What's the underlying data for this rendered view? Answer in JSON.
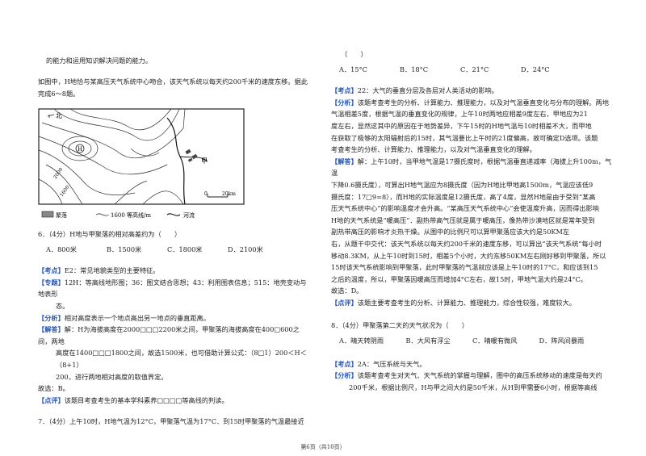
{
  "left": {
    "l1": "的能力和运用知识解决问题的能力。",
    "intro": "如图中，H地恰与某高压天气系统中心吻合，该天气系统以每天约200千米的速度东移。据此完成6～8题。",
    "map": {
      "north": "北",
      "h": "H",
      "jia": "甲",
      "c2000": "2000",
      "c1600": "1600",
      "scale0": "0",
      "scale20": "20km",
      "leg_village": "聚落",
      "leg_contour": "1600",
      "leg_contour_text": "等高线/m",
      "leg_river": "河流"
    },
    "q6": "6．（4分）H地与甲聚落的相对高差约为（　　）",
    "q6_opts": [
      "A．800米",
      "B．1500米",
      "C．1800米",
      "D．2100米"
    ],
    "kd_tag": "【考点】",
    "kd": "E2：常见地貌类型的主要特征。",
    "zt_tag": "【专题】",
    "zt1": "12H：等高线地形图；36：图文结合思想；43：利用图表信息；515：地壳变动与地表形",
    "zt2": "态。",
    "fx_tag": "【分析】",
    "fx": "相对高度表示一个地点高出另一地点的垂直距离。",
    "jd_tag": "【解答】",
    "jd1": "解：H为海拔高度在2000□□□2200米之间，甲聚落的海拔高度在400□600之间，两地",
    "jd2": "高度在1400□□□1800之间，故选1500米，也可借助计算公式：（8□1）200＜H＜（8+1）",
    "jd3": "200，进行两地相对高度的取值界定。",
    "ans": "故选：B。",
    "dp_tag": "【点评】",
    "dp": "该题目考查考生的基本学科素养□□□□等高线的判读。",
    "q7": "7．（4分）上午10时，H地气温为12°C，甲聚落气温为17°C．到15时甲聚落的气温最接近"
  },
  "right": {
    "paren": "（　　）",
    "q7_opts": [
      "A．15°C",
      "B．18°C",
      "C．21°C",
      "D．24°C"
    ],
    "kd_tag": "【考点】",
    "kd": "22：大气的垂直分层及各层对人类活动的影响。",
    "fx_tag": "【分析】",
    "fx1": "该题考查考生的分析、计算能力、推理能力，以及对气温垂直变化与分布的理解。两地",
    "fx2": "气温相差5度，根据气温的垂直变化的规律，上午10时两地应相差9度左右，甲地应为21",
    "fx3": "度左右，显然这其中的原因在于地势差异，下午15时的H地气温与10时相差不大，而甲地",
    "fx4": "在获取了极够的太阳辐射后的15时，其气温要比上午时的21度偏高，故可确定D选项。该题",
    "fx5": "考查考生的分析、计算能力、推理能力，以及对气温垂直变化的理解。",
    "jd_tag": "【解答】",
    "jd1": "解：上午10时，当甲地气温是17摄氏度时，根据气温垂直递减率（海拔上升100m，气温",
    "jd2": "下降0.6摄氏度），可算出H地气温应为8摄氏度（因为H地比甲地高1500m，气温应该低9",
    "jd3": "摄氏度：17□9=8），而H地的实际温度是12摄氏度，高了4度，显然H地是由于受到“某高",
    "jd4": "压天气系统中心”的影响温度才会升高。“某高压天气系统中心”会使温度升高，因而得出影响",
    "jd5": "H地的天气系统是“暖高压”．副热带高气压就是属于暖高压，像热带沙漠地区就是常年受到",
    "jd6": "副热带高压的影响才炎热干燥。从图中的比例尺可以算甲聚落应该大约是50KM左",
    "jd7": "右，从题干中交代：该天气系统以每天约200千米的速度东移，可以算出“该天气系统”每小时",
    "jd8": "移动8.3KM，从上午10时到15时，相差5个小时，大约东移50KM左右刚好移到甲聚落，所以",
    "jd9": "15时该天气系统影响到甲聚落，此时甲聚落的气温就应该是上午10时的17°C，和应该到15",
    "jd10": "之后的温度，所以，甲聚落因暖高压而增加4°C左右，故15时，甲地气温大约是24°C。",
    "ans": "故选：D。",
    "dp_tag": "【点评】",
    "dp": "该题主要考查考生的分析、计算能力、推理能力，综合性较强，难度较大。",
    "q8": "8．（4分）甲聚落第二天的天气状况为（　　）",
    "q8_opts": [
      "A．晴天转阴雨",
      "B．大风有浮尘",
      "C．晴暖有微风",
      "D．阵风间暴雨"
    ],
    "kd2_tag": "【考点】",
    "kd2": "2A：气压系统与天气。",
    "fx2_tag": "【分析】",
    "fx2_1": "该题考查考生对天气、天气系统的掌握与理解，图中的高压系统移动的速度是每天约",
    "fx2_2": "200千米，根据比例尺，H与甲之间大约是50千米，从H到甲需要6小时，根据等高线"
  },
  "footer": "第6页（共10页）"
}
